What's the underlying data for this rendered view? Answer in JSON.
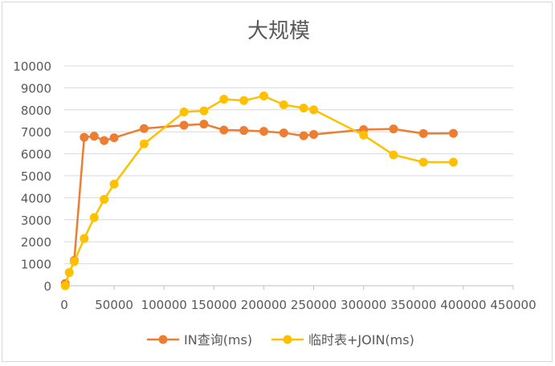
{
  "chart_data": {
    "type": "line",
    "title": "大规模",
    "xlabel": "",
    "ylabel": "",
    "xlim": [
      0,
      450000
    ],
    "ylim": [
      0,
      10000
    ],
    "x_ticks": [
      0,
      50000,
      100000,
      150000,
      200000,
      250000,
      300000,
      350000,
      400000,
      450000
    ],
    "y_ticks": [
      0,
      1000,
      2000,
      3000,
      4000,
      5000,
      6000,
      7000,
      8000,
      9000,
      10000
    ],
    "grid": "horizontal",
    "legend_position": "bottom",
    "series": [
      {
        "name": "IN查询(ms)",
        "color": "#ED7D31",
        "points": [
          [
            1000,
            100
          ],
          [
            10000,
            1150
          ],
          [
            20000,
            6750
          ],
          [
            30000,
            6800
          ],
          [
            40000,
            6600
          ],
          [
            50000,
            6730
          ],
          [
            80000,
            7150
          ],
          [
            120000,
            7300
          ],
          [
            140000,
            7350
          ],
          [
            160000,
            7080
          ],
          [
            180000,
            7060
          ],
          [
            200000,
            7020
          ],
          [
            220000,
            6950
          ],
          [
            240000,
            6820
          ],
          [
            250000,
            6880
          ],
          [
            300000,
            7100
          ],
          [
            330000,
            7130
          ],
          [
            360000,
            6920
          ],
          [
            390000,
            6930
          ]
        ]
      },
      {
        "name": "临时表+JOIN(ms)",
        "color": "#FFC000",
        "points": [
          [
            1000,
            0
          ],
          [
            5000,
            600
          ],
          [
            10000,
            1100
          ],
          [
            20000,
            2150
          ],
          [
            30000,
            3100
          ],
          [
            40000,
            3930
          ],
          [
            50000,
            4620
          ],
          [
            80000,
            6450
          ],
          [
            120000,
            7900
          ],
          [
            140000,
            7950
          ],
          [
            160000,
            8480
          ],
          [
            180000,
            8420
          ],
          [
            200000,
            8630
          ],
          [
            220000,
            8230
          ],
          [
            240000,
            8080
          ],
          [
            250000,
            8000
          ],
          [
            300000,
            6850
          ],
          [
            330000,
            5950
          ],
          [
            360000,
            5620
          ],
          [
            390000,
            5620
          ]
        ]
      }
    ]
  }
}
